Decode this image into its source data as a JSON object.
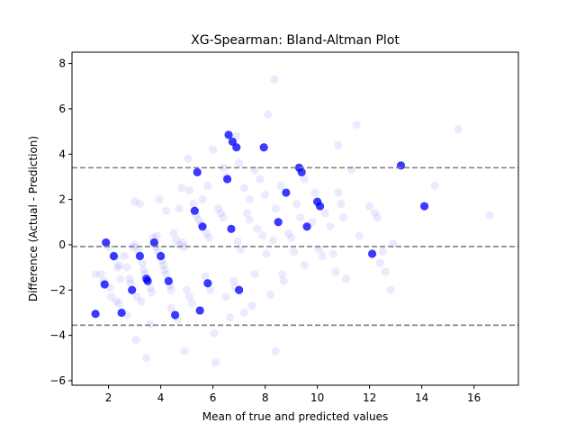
{
  "chart_data": {
    "type": "scatter",
    "title": "XG-Spearman: Bland-Altman Plot",
    "xlabel": "Mean of true and predicted values",
    "ylabel": "Difference (Actual - Prediction)",
    "xlim": [
      0.6,
      17.7
    ],
    "ylim": [
      -6.2,
      8.5
    ],
    "x_ticks": [
      2,
      4,
      6,
      8,
      10,
      12,
      14,
      16
    ],
    "y_ticks": [
      -6,
      -4,
      -2,
      0,
      2,
      4,
      6,
      8
    ],
    "grid": false,
    "point_color": "#0000ff",
    "point_alpha": 0.08,
    "hlines": {
      "upper": 3.4,
      "mean": -0.08,
      "lower": -3.55,
      "color": "#808080",
      "style": "dashed"
    },
    "points": [
      [
        1.5,
        -3.05
      ],
      [
        1.7,
        -1.3
      ],
      [
        1.8,
        -1.6
      ],
      [
        1.85,
        -1.75
      ],
      [
        1.9,
        0.1
      ],
      [
        2.0,
        -0.1
      ],
      [
        2.05,
        -1.9
      ],
      [
        2.2,
        -0.5
      ],
      [
        2.25,
        -0.55
      ],
      [
        2.3,
        -2.5
      ],
      [
        2.35,
        -1.0
      ],
      [
        2.4,
        -0.9
      ],
      [
        2.45,
        -1.5
      ],
      [
        2.5,
        -3.0
      ],
      [
        2.6,
        -0.5
      ],
      [
        2.7,
        -1.0
      ],
      [
        2.8,
        -1.5
      ],
      [
        2.85,
        -1.7
      ],
      [
        2.9,
        -2.0
      ],
      [
        2.95,
        -0.1
      ],
      [
        3.0,
        0.0
      ],
      [
        3.05,
        -4.2
      ],
      [
        3.1,
        -2.3
      ],
      [
        3.15,
        -0.3
      ],
      [
        3.2,
        -0.5
      ],
      [
        3.25,
        -2.5
      ],
      [
        3.3,
        -0.8
      ],
      [
        3.35,
        -1.1
      ],
      [
        3.4,
        -1.3
      ],
      [
        3.45,
        -5.0
      ],
      [
        3.5,
        -1.6
      ],
      [
        3.6,
        -1.9
      ],
      [
        3.65,
        -2.1
      ],
      [
        3.7,
        0.3
      ],
      [
        3.75,
        0.1
      ],
      [
        3.8,
        -0.1
      ],
      [
        3.85,
        0.4
      ],
      [
        3.9,
        -0.3
      ],
      [
        3.95,
        2.0
      ],
      [
        4.0,
        -0.5
      ],
      [
        4.05,
        -0.7
      ],
      [
        4.1,
        -0.9
      ],
      [
        4.15,
        -1.1
      ],
      [
        4.2,
        -1.3
      ],
      [
        4.3,
        -1.6
      ],
      [
        4.35,
        -1.8
      ],
      [
        4.4,
        -2.0
      ],
      [
        4.5,
        0.5
      ],
      [
        4.55,
        -3.1
      ],
      [
        4.6,
        0.2
      ],
      [
        4.65,
        -3.3
      ],
      [
        4.7,
        0.0
      ],
      [
        4.8,
        2.5
      ],
      [
        4.85,
        0.1
      ],
      [
        4.9,
        -0.1
      ],
      [
        5.0,
        -2.0
      ],
      [
        5.05,
        3.8
      ],
      [
        5.1,
        -2.3
      ],
      [
        5.2,
        -2.6
      ],
      [
        5.25,
        1.8
      ],
      [
        5.3,
        1.5
      ],
      [
        5.35,
        1.3
      ],
      [
        5.4,
        3.2
      ],
      [
        5.45,
        1.1
      ],
      [
        5.5,
        -2.9
      ],
      [
        5.55,
        0.9
      ],
      [
        5.6,
        0.8
      ],
      [
        5.7,
        -1.4
      ],
      [
        5.75,
        0.5
      ],
      [
        5.8,
        -1.7
      ],
      [
        5.85,
        0.3
      ],
      [
        5.9,
        -2.0
      ],
      [
        6.0,
        4.2
      ],
      [
        6.05,
        -3.9
      ],
      [
        6.1,
        -5.2
      ],
      [
        6.2,
        1.6
      ],
      [
        6.3,
        1.4
      ],
      [
        6.4,
        1.2
      ],
      [
        6.5,
        3.0
      ],
      [
        6.55,
        2.9
      ],
      [
        6.6,
        4.85
      ],
      [
        6.65,
        -3.2
      ],
      [
        6.7,
        0.7
      ],
      [
        6.75,
        4.55
      ],
      [
        6.8,
        -1.6
      ],
      [
        6.85,
        -1.9
      ],
      [
        6.9,
        4.3
      ],
      [
        6.95,
        0.15
      ],
      [
        7.0,
        -2.0
      ],
      [
        7.05,
        -0.2
      ],
      [
        7.2,
        2.5
      ],
      [
        7.3,
        1.4
      ],
      [
        7.4,
        1.1
      ],
      [
        7.5,
        -2.7
      ],
      [
        7.6,
        -1.3
      ],
      [
        7.7,
        0.7
      ],
      [
        7.8,
        2.9
      ],
      [
        7.9,
        0.4
      ],
      [
        7.95,
        4.3
      ],
      [
        8.0,
        2.2
      ],
      [
        8.05,
        -0.4
      ],
      [
        8.1,
        5.75
      ],
      [
        8.2,
        -2.2
      ],
      [
        8.3,
        0.2
      ],
      [
        8.4,
        1.6
      ],
      [
        8.5,
        1.0
      ],
      [
        8.6,
        2.6
      ],
      [
        8.65,
        -1.3
      ],
      [
        8.7,
        -1.6
      ],
      [
        8.8,
        2.3
      ],
      [
        8.9,
        0.5
      ],
      [
        9.0,
        0.3
      ],
      [
        9.1,
        -0.3
      ],
      [
        9.2,
        1.8
      ],
      [
        9.3,
        3.4
      ],
      [
        9.35,
        1.2
      ],
      [
        9.4,
        3.2
      ],
      [
        9.5,
        -0.9
      ],
      [
        9.6,
        0.8
      ],
      [
        9.8,
        1.0
      ],
      [
        9.9,
        2.3
      ],
      [
        10.0,
        1.9
      ],
      [
        10.05,
        -0.2
      ],
      [
        10.1,
        1.7
      ],
      [
        10.2,
        -0.5
      ],
      [
        10.3,
        1.4
      ],
      [
        10.5,
        0.8
      ],
      [
        10.6,
        -0.4
      ],
      [
        10.7,
        -1.2
      ],
      [
        10.8,
        2.3
      ],
      [
        10.9,
        1.8
      ],
      [
        11.0,
        1.2
      ],
      [
        11.3,
        3.3
      ],
      [
        11.6,
        0.4
      ],
      [
        12.0,
        1.7
      ],
      [
        12.1,
        -0.4
      ],
      [
        12.2,
        1.4
      ],
      [
        12.3,
        1.2
      ],
      [
        12.4,
        -0.8
      ],
      [
        12.5,
        -0.3
      ],
      [
        12.9,
        0.05
      ],
      [
        13.2,
        3.5
      ],
      [
        14.1,
        1.7
      ],
      [
        15.4,
        5.1
      ],
      [
        8.35,
        7.3
      ],
      [
        11.5,
        5.3
      ],
      [
        12.8,
        -2.0
      ],
      [
        4.9,
        -4.7
      ],
      [
        3.6,
        -3.5
      ],
      [
        2.7,
        -3.1
      ],
      [
        7.2,
        -3.0
      ],
      [
        6.9,
        4.8
      ],
      [
        14.5,
        2.6
      ],
      [
        16.6,
        1.3
      ],
      [
        10.8,
        4.4
      ],
      [
        8.4,
        -4.7
      ],
      [
        1.5,
        -1.3
      ],
      [
        2.1,
        -2.3
      ],
      [
        2.4,
        -2.6
      ],
      [
        5.1,
        2.4
      ],
      [
        5.8,
        2.6
      ],
      [
        6.4,
        3.4
      ],
      [
        7.0,
        3.6
      ],
      [
        7.6,
        3.3
      ],
      [
        9.5,
        2.9
      ],
      [
        11.1,
        -1.5
      ],
      [
        12.6,
        -1.2
      ],
      [
        6.5,
        -2.3
      ],
      [
        4.4,
        -2.8
      ],
      [
        3.2,
        1.8
      ],
      [
        4.7,
        1.6
      ],
      [
        5.6,
        2.0
      ],
      [
        7.4,
        2.0
      ],
      [
        3.0,
        1.9
      ],
      [
        4.2,
        1.5
      ]
    ],
    "dark_points": [
      [
        1.5,
        -3.05
      ],
      [
        1.85,
        -1.75
      ],
      [
        1.9,
        0.1
      ],
      [
        2.2,
        -0.5
      ],
      [
        2.5,
        -3.0
      ],
      [
        3.2,
        -0.5
      ],
      [
        3.45,
        -1.5
      ],
      [
        3.5,
        -1.6
      ],
      [
        3.75,
        0.1
      ],
      [
        4.0,
        -0.5
      ],
      [
        4.55,
        -3.1
      ],
      [
        5.4,
        3.2
      ],
      [
        5.5,
        -2.9
      ],
      [
        5.6,
        0.8
      ],
      [
        6.55,
        2.9
      ],
      [
        6.6,
        4.85
      ],
      [
        6.75,
        4.55
      ],
      [
        6.9,
        4.3
      ],
      [
        7.0,
        -2.0
      ],
      [
        7.95,
        4.3
      ],
      [
        8.5,
        1.0
      ],
      [
        9.3,
        3.4
      ],
      [
        9.4,
        3.2
      ],
      [
        10.0,
        1.9
      ],
      [
        10.1,
        1.7
      ],
      [
        12.1,
        -0.4
      ],
      [
        13.2,
        3.5
      ],
      [
        14.1,
        1.7
      ],
      [
        6.7,
        0.7
      ],
      [
        5.3,
        1.5
      ],
      [
        5.8,
        -1.7
      ],
      [
        4.3,
        -1.6
      ],
      [
        2.9,
        -2.0
      ],
      [
        9.6,
        0.8
      ],
      [
        8.8,
        2.3
      ]
    ]
  }
}
